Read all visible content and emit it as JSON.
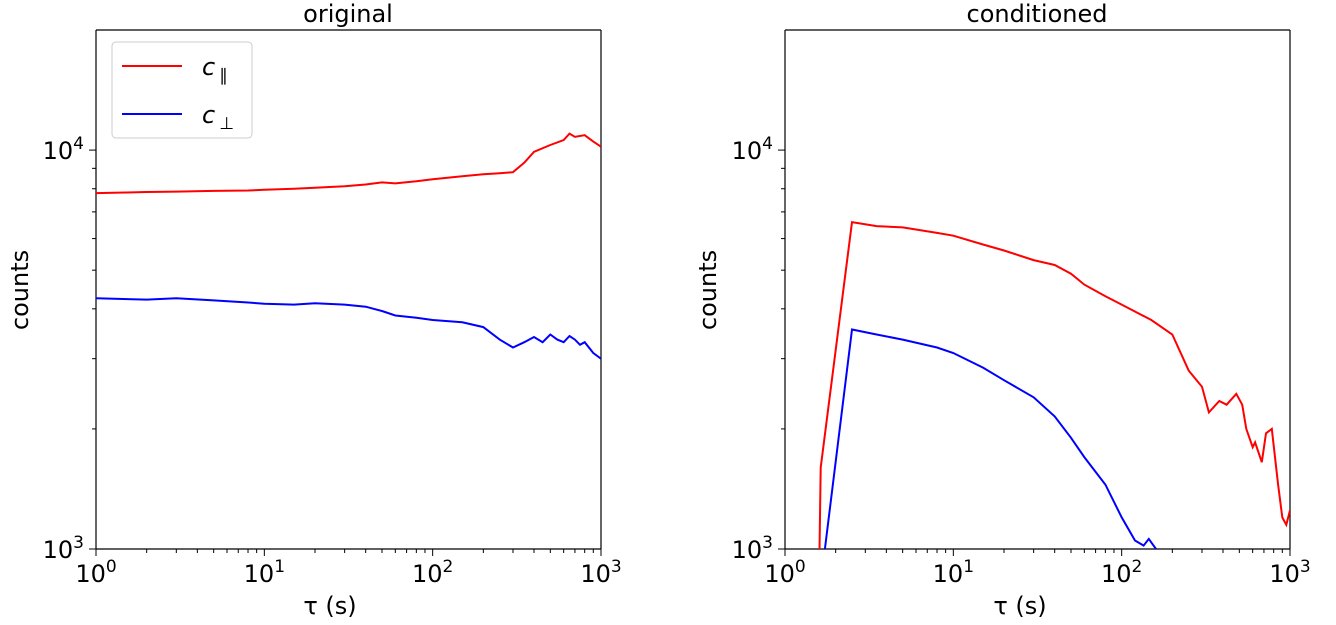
{
  "chart_data": [
    {
      "type": "line",
      "title": "original",
      "xlabel": "τ (s)",
      "ylabel": "counts",
      "xscale": "log",
      "yscale": "log",
      "xlim": [
        1,
        1000
      ],
      "ylim": [
        1000,
        20000
      ],
      "x_ticks": [
        {
          "value": 1,
          "base": "10",
          "exp": "0"
        },
        {
          "value": 10,
          "base": "10",
          "exp": "1"
        },
        {
          "value": 100,
          "base": "10",
          "exp": "2"
        },
        {
          "value": 1000,
          "base": "10",
          "exp": "3"
        }
      ],
      "y_ticks": [
        {
          "value": 1000,
          "base": "10",
          "exp": "3"
        },
        {
          "value": 10000,
          "base": "10",
          "exp": "4"
        }
      ],
      "legend": {
        "location": "upper-left"
      },
      "series": [
        {
          "name": "c ∥",
          "label_main": "c",
          "label_sub": "∥",
          "color": "#ff0000",
          "points": [
            [
              1,
              7800
            ],
            [
              1.5,
              7830
            ],
            [
              2,
              7850
            ],
            [
              3,
              7870
            ],
            [
              5,
              7900
            ],
            [
              8,
              7920
            ],
            [
              10,
              7950
            ],
            [
              15,
              8000
            ],
            [
              20,
              8050
            ],
            [
              30,
              8120
            ],
            [
              40,
              8200
            ],
            [
              50,
              8300
            ],
            [
              60,
              8250
            ],
            [
              80,
              8350
            ],
            [
              100,
              8450
            ],
            [
              150,
              8600
            ],
            [
              200,
              8700
            ],
            [
              250,
              8750
            ],
            [
              300,
              8800
            ],
            [
              350,
              9300
            ],
            [
              400,
              9900
            ],
            [
              500,
              10300
            ],
            [
              600,
              10600
            ],
            [
              650,
              11000
            ],
            [
              700,
              10800
            ],
            [
              800,
              10900
            ],
            [
              900,
              10500
            ],
            [
              1000,
              10200
            ]
          ]
        },
        {
          "name": "c ⊥",
          "label_main": "c",
          "label_sub": "⊥",
          "color": "#0000ff",
          "points": [
            [
              1,
              4250
            ],
            [
              2,
              4220
            ],
            [
              3,
              4250
            ],
            [
              5,
              4200
            ],
            [
              8,
              4150
            ],
            [
              10,
              4120
            ],
            [
              15,
              4100
            ],
            [
              20,
              4130
            ],
            [
              30,
              4100
            ],
            [
              40,
              4050
            ],
            [
              50,
              3950
            ],
            [
              60,
              3850
            ],
            [
              80,
              3800
            ],
            [
              100,
              3750
            ],
            [
              150,
              3700
            ],
            [
              200,
              3600
            ],
            [
              250,
              3350
            ],
            [
              300,
              3200
            ],
            [
              350,
              3300
            ],
            [
              400,
              3400
            ],
            [
              450,
              3300
            ],
            [
              500,
              3450
            ],
            [
              550,
              3350
            ],
            [
              600,
              3300
            ],
            [
              650,
              3420
            ],
            [
              700,
              3350
            ],
            [
              750,
              3250
            ],
            [
              800,
              3300
            ],
            [
              900,
              3100
            ],
            [
              1000,
              3000
            ]
          ]
        }
      ]
    },
    {
      "type": "line",
      "title": "conditioned",
      "xlabel": "τ (s)",
      "ylabel": "counts",
      "xscale": "log",
      "yscale": "log",
      "xlim": [
        1,
        1000
      ],
      "ylim": [
        1000,
        20000
      ],
      "x_ticks": [
        {
          "value": 1,
          "base": "10",
          "exp": "0"
        },
        {
          "value": 10,
          "base": "10",
          "exp": "1"
        },
        {
          "value": 100,
          "base": "10",
          "exp": "2"
        },
        {
          "value": 1000,
          "base": "10",
          "exp": "3"
        }
      ],
      "y_ticks": [
        {
          "value": 1000,
          "base": "10",
          "exp": "3"
        },
        {
          "value": 10000,
          "base": "10",
          "exp": "4"
        }
      ],
      "series": [
        {
          "color": "#ff0000",
          "points": [
            [
              1.6,
              950
            ],
            [
              1.63,
              1600
            ],
            [
              2.5,
              6600
            ],
            [
              3.5,
              6450
            ],
            [
              5,
              6400
            ],
            [
              8,
              6200
            ],
            [
              10,
              6100
            ],
            [
              15,
              5800
            ],
            [
              20,
              5600
            ],
            [
              30,
              5300
            ],
            [
              40,
              5150
            ],
            [
              50,
              4900
            ],
            [
              60,
              4600
            ],
            [
              80,
              4300
            ],
            [
              100,
              4100
            ],
            [
              150,
              3750
            ],
            [
              200,
              3450
            ],
            [
              250,
              2800
            ],
            [
              300,
              2550
            ],
            [
              330,
              2200
            ],
            [
              380,
              2350
            ],
            [
              420,
              2300
            ],
            [
              480,
              2450
            ],
            [
              520,
              2300
            ],
            [
              550,
              2000
            ],
            [
              600,
              1800
            ],
            [
              620,
              1850
            ],
            [
              680,
              1650
            ],
            [
              720,
              1950
            ],
            [
              780,
              2000
            ],
            [
              850,
              1450
            ],
            [
              900,
              1200
            ],
            [
              950,
              1150
            ],
            [
              1000,
              1250
            ]
          ]
        },
        {
          "color": "#0000ff",
          "points": [
            [
              1.7,
              950
            ],
            [
              2.5,
              3550
            ],
            [
              3.5,
              3450
            ],
            [
              5,
              3350
            ],
            [
              8,
              3200
            ],
            [
              10,
              3100
            ],
            [
              15,
              2850
            ],
            [
              20,
              2650
            ],
            [
              30,
              2400
            ],
            [
              40,
              2150
            ],
            [
              50,
              1900
            ],
            [
              60,
              1700
            ],
            [
              80,
              1450
            ],
            [
              100,
              1200
            ],
            [
              120,
              1050
            ],
            [
              135,
              1020
            ],
            [
              145,
              1060
            ],
            [
              160,
              1000
            ]
          ]
        }
      ]
    }
  ]
}
